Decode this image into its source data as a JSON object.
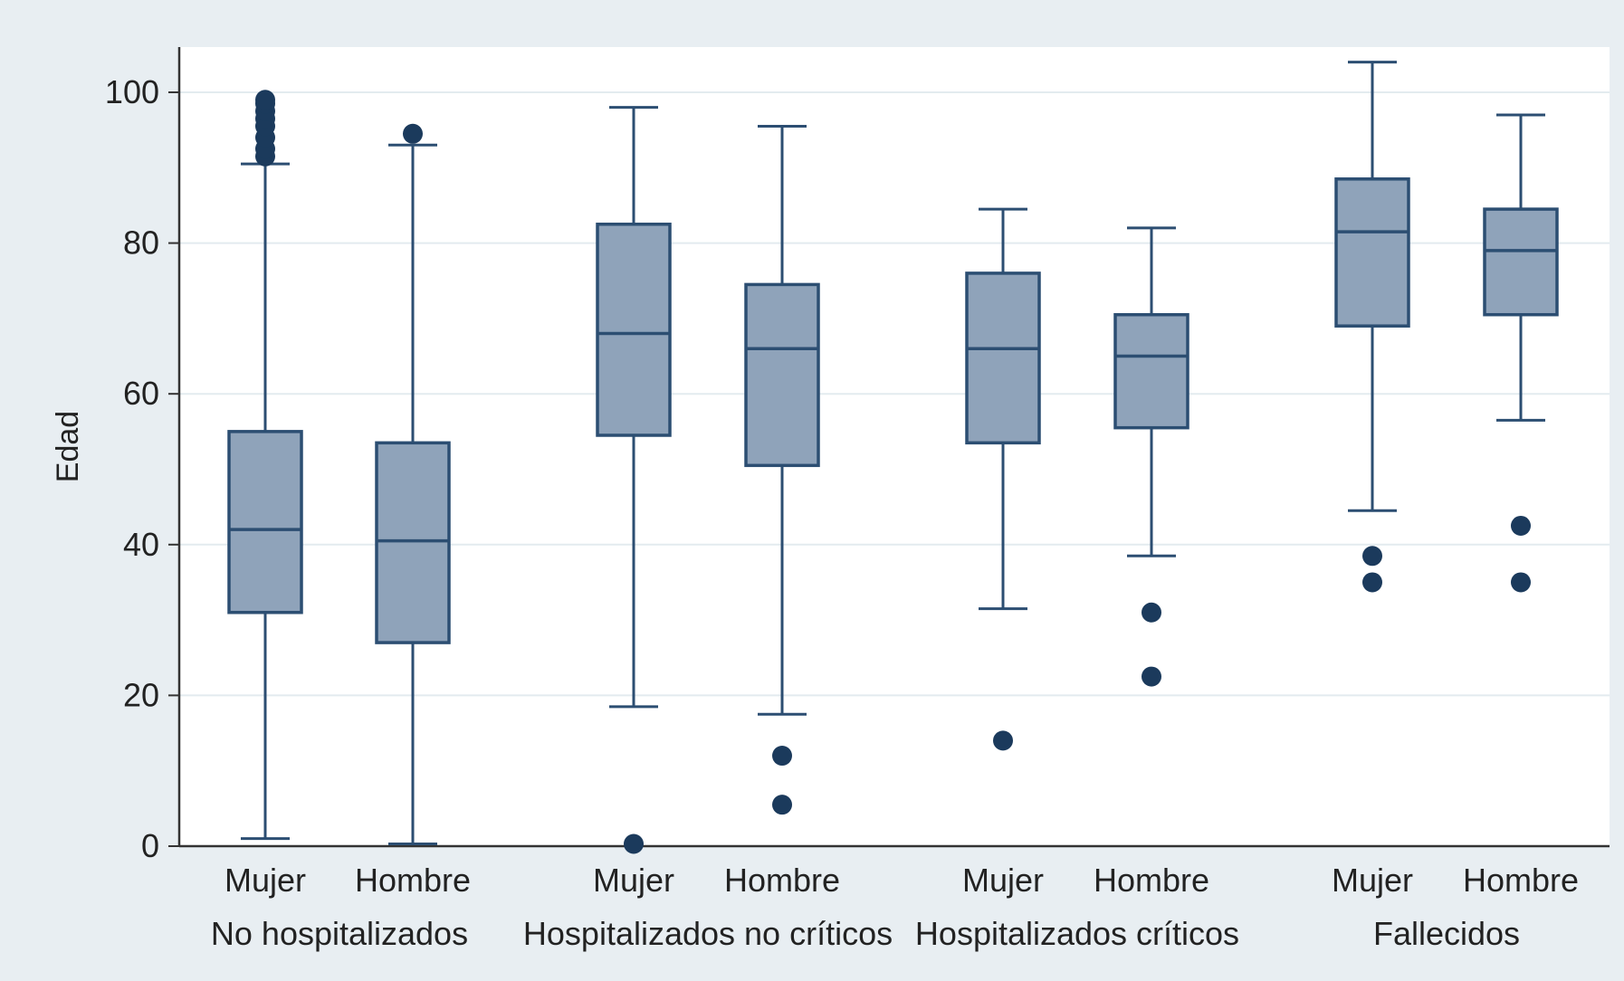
{
  "chart_data": {
    "type": "boxplot",
    "ylabel": "Edad",
    "ylim": [
      0,
      106
    ],
    "y_ticks": [
      0,
      20,
      40,
      60,
      80,
      100
    ],
    "grid": "horizontal",
    "colors": {
      "box_fill": "#8fa3ba",
      "box_stroke": "#2c4e72",
      "outlier": "#1b3a5c",
      "grid": "#e3ebef",
      "frame_bg": "#e8eef2",
      "plot_bg": "#ffffff"
    },
    "groups": [
      {
        "label": "No hospitalizados",
        "boxes": [
          {
            "label": "Mujer",
            "whisker_low": 1,
            "q1": 31,
            "median": 42,
            "q3": 55,
            "whisker_high": 90.5,
            "outliers": [
              91.5,
              92.5,
              94,
              95.5,
              96.5,
              97.5,
              98.5,
              99
            ]
          },
          {
            "label": "Hombre",
            "whisker_low": 0.3,
            "q1": 27,
            "median": 40.5,
            "q3": 53.5,
            "whisker_high": 93,
            "outliers": [
              94.5
            ]
          }
        ]
      },
      {
        "label": "Hospitalizados no críticos",
        "boxes": [
          {
            "label": "Mujer",
            "whisker_low": 18.5,
            "q1": 54.5,
            "median": 68,
            "q3": 82.5,
            "whisker_high": 98,
            "outliers": [
              0.3
            ]
          },
          {
            "label": "Hombre",
            "whisker_low": 17.5,
            "q1": 50.5,
            "median": 66,
            "q3": 74.5,
            "whisker_high": 95.5,
            "outliers": [
              12,
              5.5
            ]
          }
        ]
      },
      {
        "label": "Hospitalizados críticos",
        "boxes": [
          {
            "label": "Mujer",
            "whisker_low": 31.5,
            "q1": 53.5,
            "median": 66,
            "q3": 76,
            "whisker_high": 84.5,
            "outliers": [
              14
            ]
          },
          {
            "label": "Hombre",
            "whisker_low": 38.5,
            "q1": 55.5,
            "median": 65,
            "q3": 70.5,
            "whisker_high": 82,
            "outliers": [
              31,
              22.5
            ]
          }
        ]
      },
      {
        "label": "Fallecidos",
        "boxes": [
          {
            "label": "Mujer",
            "whisker_low": 44.5,
            "q1": 69,
            "median": 81.5,
            "q3": 88.5,
            "whisker_high": 104,
            "outliers": [
              38.5,
              35
            ]
          },
          {
            "label": "Hombre",
            "whisker_low": 56.5,
            "q1": 70.5,
            "median": 79,
            "q3": 84.5,
            "whisker_high": 97,
            "outliers": [
              42.5,
              35
            ]
          }
        ]
      }
    ]
  }
}
